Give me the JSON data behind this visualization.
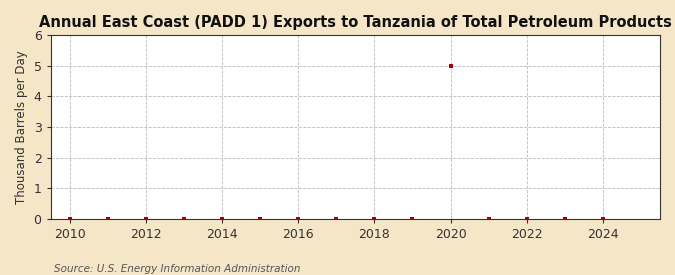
{
  "title": "Annual East Coast (PADD 1) Exports to Tanzania of Total Petroleum Products",
  "ylabel": "Thousand Barrels per Day",
  "source_text": "Source: U.S. Energy Information Administration",
  "xlim": [
    2009.5,
    2025.5
  ],
  "ylim": [
    0,
    6
  ],
  "yticks": [
    0,
    1,
    2,
    3,
    4,
    5,
    6
  ],
  "xticks": [
    2010,
    2012,
    2014,
    2016,
    2018,
    2020,
    2022,
    2024
  ],
  "outer_bg": "#f5e6c8",
  "plot_bg": "#ffffff",
  "grid_color": "#bbbbbb",
  "spine_color": "#333333",
  "data_points": {
    "x": [
      2010,
      2011,
      2012,
      2013,
      2014,
      2015,
      2016,
      2017,
      2018,
      2019,
      2020,
      2021,
      2022,
      2023,
      2024
    ],
    "y": [
      0,
      0,
      0,
      0,
      0,
      0,
      0,
      0,
      0,
      0,
      5.0,
      0,
      0,
      0,
      0
    ]
  },
  "dot_color": "#aa0000",
  "dot_size": 12,
  "title_fontsize": 10.5,
  "label_fontsize": 8.5,
  "tick_fontsize": 9,
  "source_fontsize": 7.5
}
